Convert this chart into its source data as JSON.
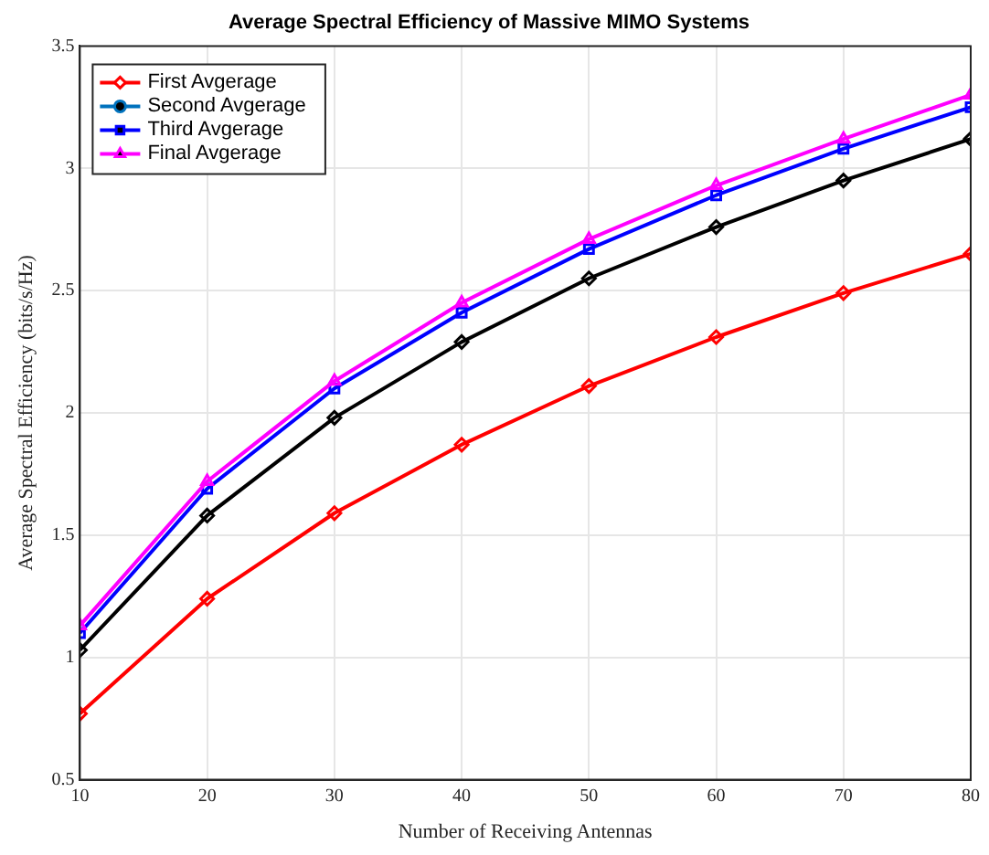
{
  "chart_data": {
    "type": "line",
    "title": "Average Spectral Efficiency of Massive MIMO Systems",
    "xlabel": "Number of Receiving Antennas",
    "ylabel": "Average Spectral Efficiency (bits/s/Hz)",
    "x": [
      10,
      20,
      30,
      40,
      50,
      60,
      70,
      80
    ],
    "xlim": [
      10,
      80
    ],
    "xticks": [
      10,
      20,
      30,
      40,
      50,
      60,
      70,
      80
    ],
    "ylim": [
      0.5,
      3.5
    ],
    "yticks": [
      0.5,
      1,
      1.5,
      2,
      2.5,
      3,
      3.5
    ],
    "grid": true,
    "legend": "top left",
    "line_style": "solid",
    "series": [
      {
        "name": "First Avgerage",
        "color": "#ff0000",
        "marker": "diamond",
        "values": [
          0.77,
          1.24,
          1.59,
          1.87,
          2.11,
          2.31,
          2.49,
          2.65
        ]
      },
      {
        "name": "Second Avgerage",
        "color": "#0072bd",
        "marker": "circle",
        "values": [
          null,
          null,
          null,
          null,
          null,
          null,
          null,
          null
        ]
      },
      {
        "name": "Third Avgerage",
        "color": "#0000ff",
        "marker": "square",
        "values": [
          1.1,
          1.69,
          2.1,
          2.41,
          2.67,
          2.89,
          3.08,
          3.25
        ]
      },
      {
        "name": "Final Avgerage",
        "color": "#ff00ff",
        "marker": "triangle",
        "values": [
          1.13,
          1.72,
          2.13,
          2.45,
          2.71,
          2.93,
          3.12,
          3.3
        ]
      },
      {
        "color": "#000000",
        "marker": "diamond",
        "values": [
          1.03,
          1.58,
          1.98,
          2.29,
          2.55,
          2.76,
          2.95,
          3.12
        ]
      }
    ]
  }
}
